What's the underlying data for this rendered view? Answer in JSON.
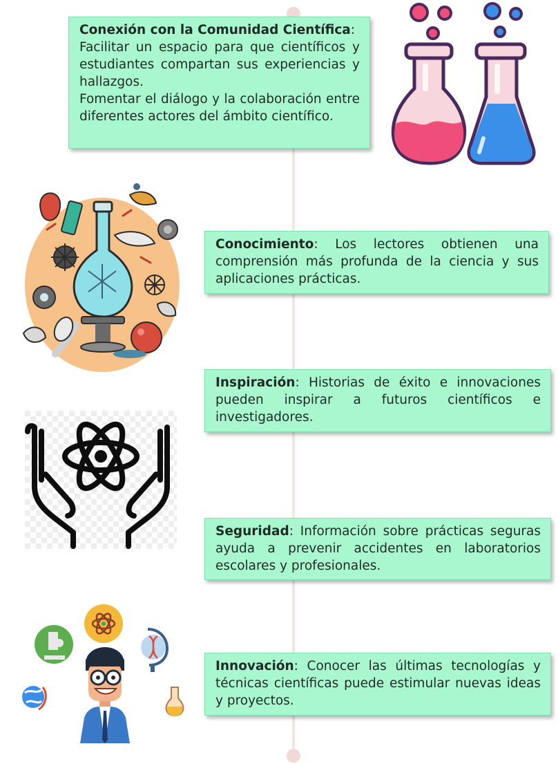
{
  "cards": [
    {
      "title": "Conexión con la Comunidad Científica",
      "sep": ":",
      "lines": [
        "Facilitar un espacio para que científicos y estudiantes compartan sus experiencias y hallazgos.",
        "Fomentar el diálogo y la colaboración entre diferentes actores del ámbito científico."
      ]
    },
    {
      "title": "Conocimiento",
      "sep": ":",
      "text": " Los lectores obtienen una comprensión más profunda de la ciencia y sus aplicaciones prácticas."
    },
    {
      "title": "Inspiración",
      "sep": ":",
      "text": " Historias de éxito e innovaciones pueden inspirar a futuros científicos e investigadores."
    },
    {
      "title": "Seguridad",
      "sep": ":",
      "text": " Información sobre prácticas seguras ayuda a prevenir accidentes en laboratorios escolares y profesionales."
    },
    {
      "title": "Innovación",
      "sep": ":",
      "text": " Conocer las últimas tecnologías y técnicas científicas puede estimular nuevas ideas y proyectos."
    }
  ],
  "colors": {
    "card_bg": "#a9f7cf",
    "timeline": "#f1e6e4"
  },
  "icons": [
    "lab-flasks-icon",
    "science-collage-icon",
    "atom-hands-icon",
    "scientist-icon"
  ]
}
